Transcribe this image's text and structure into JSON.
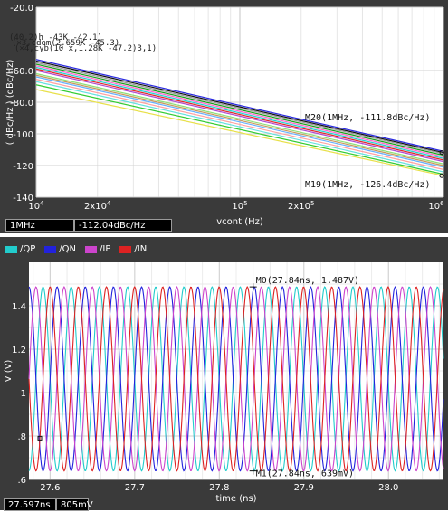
{
  "top_chart": {
    "chart_data": {
      "type": "line",
      "title": "",
      "xlabel": "vcont (Hz)",
      "ylabel": "( dBc/Hz ) (dBc/Hz)",
      "x_scale": "log",
      "xlim": [
        10000,
        1000000
      ],
      "ylim": [
        -140,
        -20
      ],
      "grid": true,
      "x_ticks": [
        {
          "value": 10000,
          "base": "10",
          "exp": "4"
        },
        {
          "value": 20000,
          "base": "2x10",
          "exp": "4"
        },
        {
          "value": 100000,
          "base": "10",
          "exp": "5"
        },
        {
          "value": 200000,
          "base": "2x10",
          "exp": "5"
        },
        {
          "value": 1000000,
          "base": "10",
          "exp": "6"
        }
      ],
      "y_ticks": [
        "-20.0",
        "-60.0",
        "-80.0",
        "-100",
        "-120",
        "-140"
      ],
      "y_tick_values": [
        -20,
        -60,
        -80,
        -100,
        -120,
        -140
      ],
      "series": [
        {
          "color": "#2a2ae0",
          "values": [
            -53,
            -111.0
          ]
        },
        {
          "color": "#111111",
          "values": [
            -54,
            -111.8
          ]
        },
        {
          "color": "#9a9a9a",
          "values": [
            -55,
            -112.5
          ]
        },
        {
          "color": "#1aa01a",
          "values": [
            -56,
            -113.5
          ]
        },
        {
          "color": "#ff66cc",
          "values": [
            -57,
            -114.5
          ]
        },
        {
          "color": "#22d3d3",
          "values": [
            -58,
            -115.5
          ]
        },
        {
          "color": "#e02a2a",
          "values": [
            -59,
            -116.5
          ]
        },
        {
          "color": "#b04ad0",
          "values": [
            -60,
            -117.5
          ]
        },
        {
          "color": "#8de07a",
          "values": [
            -62,
            -119.0
          ]
        },
        {
          "color": "#c89a5a",
          "values": [
            -63,
            -120.0
          ]
        },
        {
          "color": "#66b0ff",
          "values": [
            -64,
            -121.0
          ]
        },
        {
          "color": "#ffa0a0",
          "values": [
            -65.5,
            -122.5
          ]
        },
        {
          "color": "#66e0e0",
          "values": [
            -67,
            -124.0
          ]
        },
        {
          "color": "#33cc33",
          "values": [
            -69,
            -125.5
          ]
        },
        {
          "color": "#e8e04a",
          "values": [
            -72,
            -126.4
          ]
        }
      ],
      "series_x": [
        10000,
        1000000
      ],
      "annotations": [
        "M20(1MHz, -111.8dBc/Hz)",
        "M19(1MHz, -126.4dBc/Hz)"
      ],
      "clutter_labels": [
        "(40.2)h -43K -42.1)",
        "(×3,cdom(2.659K -45.3)",
        "(×4,cyb(10 x,1.28K -47.2)3,1)"
      ]
    },
    "status": [
      "1MHz",
      "-112.04dBc/Hz"
    ]
  },
  "bottom_chart": {
    "chart_data": {
      "type": "line",
      "title": "",
      "xlabel": "time (ns)",
      "ylabel": "V (V)",
      "xlim": [
        27.575,
        28.065
      ],
      "ylim": [
        0.6,
        1.6
      ],
      "grid": true,
      "x_ticks": [
        "27.6",
        "27.7",
        "27.8",
        "27.9",
        "28.0"
      ],
      "x_tick_values": [
        27.6,
        27.7,
        27.8,
        27.9,
        28.0
      ],
      "y_ticks": [
        ".6",
        ".8",
        "1",
        "1.2",
        "1.4"
      ],
      "y_tick_values": [
        0.6,
        0.8,
        1.0,
        1.2,
        1.4
      ],
      "period_ns": 0.0333,
      "amplitude_v": 0.424,
      "offset_v": 1.063,
      "series": [
        {
          "name": "/QP",
          "color": "#22cccc",
          "phase_deg": 270
        },
        {
          "name": "/QN",
          "color": "#2222dd",
          "phase_deg": 90
        },
        {
          "name": "/IP",
          "color": "#cc44cc",
          "phase_deg": 0
        },
        {
          "name": "/IN",
          "color": "#dd2222",
          "phase_deg": 180
        }
      ],
      "markers": [
        {
          "label": "M0(27.84ns, 1.487V)",
          "x": 27.84,
          "y": 1.487
        },
        {
          "label": "M1(27.84ns, 639mV)",
          "x": 27.84,
          "y": 0.639
        }
      ]
    },
    "status": [
      "27.597ns",
      "805mV"
    ]
  }
}
